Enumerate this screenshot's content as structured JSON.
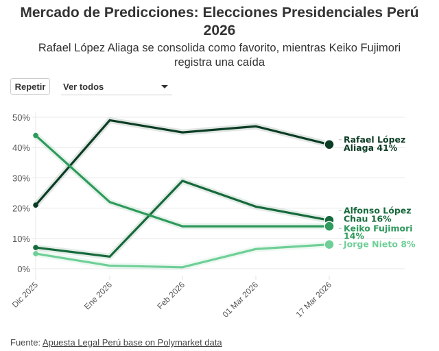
{
  "header": {
    "title_line1": "Mercado de Predicciones: Elecciones Presidenciales Perú",
    "title_line2": "2026",
    "subtitle_line1": "Rafael López Aliaga se consolida como favorito, mientras Keiko Fujimori",
    "subtitle_line2": "registra una caída"
  },
  "controls": {
    "replay_label": "Repetir",
    "select_value": "Ver todos",
    "select_icon": "caret-down-icon"
  },
  "footer": {
    "source_prefix": "Fuente: ",
    "source_link": "Apuesta Legal Perú base on Polymarket data"
  },
  "chart_data": {
    "type": "line",
    "title": "Mercado de Predicciones: Elecciones Presidenciales Perú 2026",
    "subtitle": "Rafael López Aliaga se consolida como favorito, mientras Keiko Fujimori registra una caída",
    "xlabel": "",
    "ylabel": "",
    "x": [
      "Dic 2025",
      "Ene 2026",
      "Feb 2026",
      "01 Mar 2026",
      "17 Mar 2026"
    ],
    "ylim": [
      0,
      50
    ],
    "yticks": [
      "0%",
      "10%",
      "20%",
      "30%",
      "40%",
      "50%"
    ],
    "ytick_values": [
      0,
      10,
      20,
      30,
      40,
      50
    ],
    "grid": true,
    "legend": "end-of-line labels (right)",
    "series": [
      {
        "name": "Rafael López Aliaga",
        "label_line1": "Rafael López",
        "label_line2": "Aliaga 41%",
        "color": "#0b3d24",
        "values": [
          21,
          49,
          45,
          47,
          41
        ]
      },
      {
        "name": "Alfonso López Chau",
        "label_line1": "Alfonso López",
        "label_line2": "Chau 16%",
        "color": "#16693b",
        "values": [
          7,
          4,
          29,
          20.5,
          16
        ]
      },
      {
        "name": "Keiko Fujimori",
        "label_line1": "Keiko Fujimori",
        "label_line2": "14%",
        "color": "#2e9a5c",
        "values": [
          44,
          22,
          14,
          14,
          14
        ]
      },
      {
        "name": "Jorge Nieto",
        "label_line1": "Jorge Nieto 8%",
        "label_line2": "",
        "color": "#6fcf97",
        "values": [
          5,
          1,
          0.5,
          6.5,
          8
        ]
      }
    ]
  }
}
